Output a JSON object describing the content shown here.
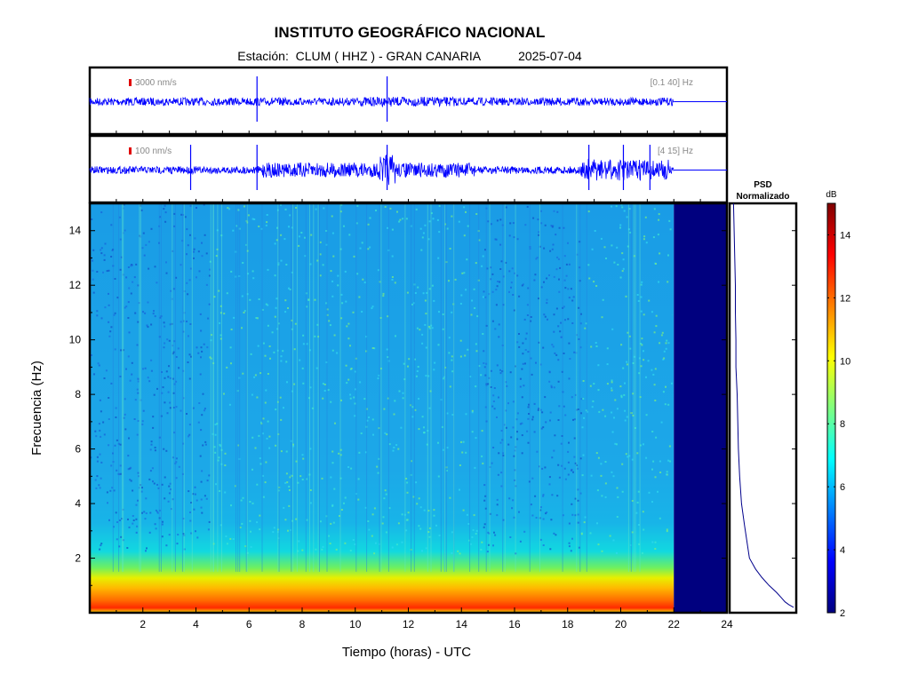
{
  "header": {
    "institute": "INSTITUTO GEOGRÁFICO NACIONAL",
    "station_line": "Estación:  CLUM ( HHZ ) - GRAN CANARIA",
    "date": "2025-07-04"
  },
  "chart_data": [
    {
      "type": "line",
      "name": "seismogram-broadband",
      "scale_label": "3000 nm/s",
      "filter_label": "[0.1 40] Hz",
      "scale_bar_color": "#e00000",
      "trace_color": "#0000ff",
      "data_end_hour": 22,
      "xlim": [
        0,
        24
      ],
      "spike_hours": [
        6.3,
        11.2
      ]
    },
    {
      "type": "line",
      "name": "seismogram-filtered",
      "scale_label": "100 nm/s",
      "filter_label": "[4 15] Hz",
      "scale_bar_color": "#e00000",
      "trace_color": "#0000ff",
      "data_end_hour": 22,
      "xlim": [
        0,
        24
      ],
      "spike_hours": [
        3.8,
        6.3,
        11.2,
        18.8,
        20.1,
        21.1
      ]
    },
    {
      "type": "heatmap",
      "name": "spectrogram",
      "xlabel": "Tiempo (horas) - UTC",
      "ylabel": "Frecuencia  (Hz)",
      "xlim": [
        0,
        24
      ],
      "ylim": [
        0,
        15
      ],
      "x_ticks": [
        "2",
        "4",
        "6",
        "8",
        "10",
        "12",
        "14",
        "16",
        "18",
        "20",
        "22",
        "24"
      ],
      "y_ticks": [
        "2",
        "4",
        "6",
        "8",
        "10",
        "12",
        "14"
      ],
      "data_end_hour": 22,
      "no_data_color": "#00007f",
      "colormap": "jet",
      "color_range_db": [
        2,
        15
      ]
    },
    {
      "type": "line",
      "name": "psd-normalizado",
      "title": "PSD\nNormalizado",
      "ylim": [
        0,
        15
      ],
      "points": [
        [
          0.02,
          15
        ],
        [
          0.03,
          14
        ],
        [
          0.04,
          13
        ],
        [
          0.05,
          12
        ],
        [
          0.05,
          11
        ],
        [
          0.06,
          10
        ],
        [
          0.06,
          9
        ],
        [
          0.08,
          8
        ],
        [
          0.09,
          7
        ],
        [
          0.1,
          6
        ],
        [
          0.12,
          5
        ],
        [
          0.15,
          4
        ],
        [
          0.2,
          3.2
        ],
        [
          0.28,
          2
        ],
        [
          0.38,
          1.6
        ],
        [
          0.48,
          1.3
        ],
        [
          0.6,
          1.0
        ],
        [
          0.72,
          0.75
        ],
        [
          0.8,
          0.55
        ],
        [
          0.86,
          0.4
        ],
        [
          0.92,
          0.3
        ],
        [
          1.0,
          0.2
        ]
      ],
      "line_color": "#00008b"
    },
    {
      "type": "heatmap",
      "name": "colorbar",
      "unit_label": "dB",
      "ticks": [
        "2",
        "4",
        "6",
        "8",
        "10",
        "12",
        "14"
      ],
      "range": [
        2,
        15
      ]
    }
  ]
}
